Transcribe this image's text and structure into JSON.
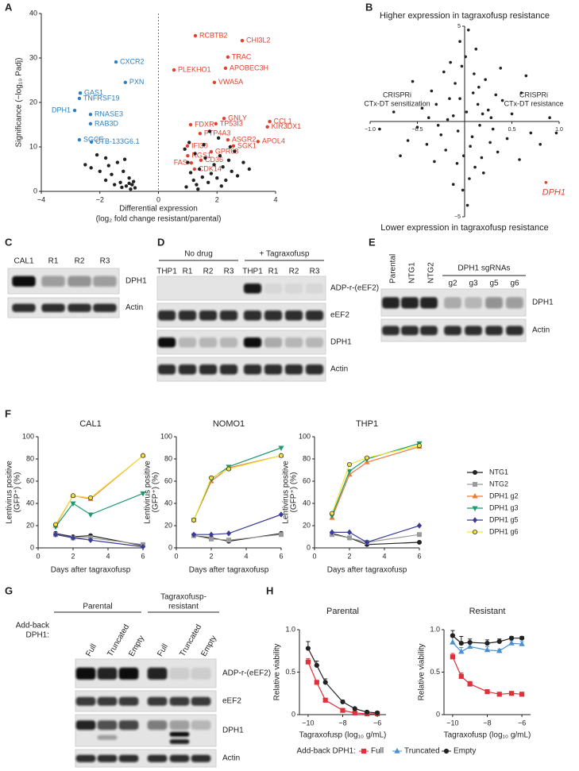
{
  "panel_labels": [
    "A",
    "B",
    "C",
    "D",
    "E",
    "F",
    "G",
    "H"
  ],
  "chart_data": [
    {
      "type": "volcano",
      "xlabel": [
        "Differential expression",
        "(log₂ fold change resistant/parental)"
      ],
      "ylabel": "Significance (−log₁₀ Padj)",
      "xlim": [
        -4,
        4
      ],
      "xticks": [
        {
          "value": -4,
          "label": "−4"
        },
        {
          "value": -2,
          "label": "−2"
        },
        0,
        2,
        4
      ],
      "ylim": [
        0,
        40
      ],
      "yticks": [
        0,
        10,
        20,
        30,
        40
      ],
      "series": [
        {
          "color": "#2e7fc0",
          "x": [
            -1.45,
            -1.13,
            -2.67,
            -2.7,
            -2.86,
            -2.32,
            -2.32,
            -2.7,
            -2.29
          ],
          "values": [
            29.1,
            24.5,
            22.1,
            20.9,
            18.2,
            17.3,
            15.2,
            11.6,
            11.1
          ],
          "point_labels": [
            "CXCR2",
            "PXN",
            "GAS1",
            "TNFRSF19",
            "DPH1",
            "RNASE3",
            "RAB3D",
            "SGCE",
            "CTB-133G6.1"
          ]
        },
        {
          "color": "#e0412c",
          "x": [
            1.26,
            2.86,
            2.37,
            2.29,
            0.53,
            1.91,
            3.8,
            3.72,
            2.24,
            1.1,
            1.96,
            1.42,
            2.37,
            2.56,
            0.99,
            1.8,
            1.0,
            1.45,
            1.12,
            1.23,
            3.4
          ],
          "values": [
            35.0,
            33.9,
            30.2,
            27.7,
            27.3,
            24.5,
            15.7,
            14.5,
            16.4,
            15.0,
            15.2,
            13.0,
            11.6,
            10.2,
            10.2,
            8.9,
            8.0,
            7.0,
            6.4,
            5.0,
            11.2
          ],
          "point_labels": [
            "RCBTB2",
            "CHI3L2",
            "TRAC",
            "APOBEC3H",
            "PLEKHO1",
            "VWA5A",
            "CCL1",
            "KIR3DX1",
            "GNLY",
            "FDXR",
            "TP53I3",
            "PTP4A3",
            "ASGR2",
            "SGK1",
            "IFI30",
            "GPR68",
            "RGS1",
            "CD36",
            "FAS",
            "CDK14",
            "APOL4"
          ]
        },
        {
          "color": "#222222",
          "x": [
            -2.5,
            -2.3,
            -2.0,
            -1.8,
            -1.6,
            -1.5,
            -1.3,
            -1.2,
            -1.1,
            -1.0,
            -0.9,
            -0.8,
            -1.4,
            -1.8,
            -2.1,
            -1.0,
            -0.85,
            -1.25,
            -1.7,
            -0.95,
            -1.15,
            0.9,
            1.0,
            1.1,
            1.2,
            1.3,
            1.4,
            1.5,
            1.6,
            1.7,
            1.8,
            1.9,
            2.0,
            2.1,
            2.2,
            2.3,
            2.4,
            2.5,
            2.6,
            2.7,
            2.9,
            3.1,
            0.95,
            1.05,
            1.25,
            1.55,
            2.05,
            2.45,
            1.35,
            1.75,
            2.15
          ],
          "values": [
            6,
            5.3,
            4.5,
            2.5,
            3.8,
            1.5,
            2.0,
            4.5,
            1.2,
            3.0,
            1.5,
            0.8,
            6.5,
            7.5,
            8.2,
            1.8,
            2.2,
            0.9,
            5.8,
            0.5,
            7.2,
            9.5,
            6.5,
            4.2,
            2.5,
            1.5,
            5.0,
            3.2,
            7.5,
            2.0,
            4.0,
            6.0,
            3.0,
            8.0,
            5.5,
            2.5,
            7.0,
            4.5,
            9.0,
            3.5,
            6.5,
            5.0,
            1.0,
            11.0,
            8.5,
            10.5,
            12.0,
            10.0,
            0.5,
            13.5,
            1.2
          ]
        }
      ]
    },
    {
      "type": "scatter",
      "top_label": "Higher expression in tagraxofusp resistance",
      "bottom_label": "Lower expression in tagraxofusp resistance",
      "left_label": [
        "CRISPRi",
        "CTx-DT sensitization"
      ],
      "right_label": [
        "CRISPRi",
        "CTx-DT resistance"
      ],
      "xlim": [
        -1,
        1
      ],
      "xticks": [
        {
          "value": -1,
          "label": "−1.0"
        },
        {
          "value": -0.5,
          "label": "−0.5"
        },
        0.5,
        {
          "value": 1,
          "label": "1.0"
        }
      ],
      "ylim": [
        -5,
        5
      ],
      "yticks": [
        5,
        {
          "value": -5,
          "label": "−5"
        }
      ],
      "series": [
        {
          "color": "#222222",
          "x": [
            0.02,
            -0.05,
            0.08,
            -0.12,
            0.15,
            -0.2,
            0.1,
            -0.08,
            0.25,
            -0.3,
            0.3,
            -0.15,
            0.05,
            0.18,
            -0.25,
            0.4,
            -0.4,
            0.12,
            -0.02,
            0.22,
            -0.35,
            0.35,
            -0.1,
            0.06,
            -0.18,
            0.28,
            -0.05,
            0.03,
            0.5,
            -0.5,
            0.45,
            -0.45,
            0.6,
            -0.6,
            0.14,
            -0.22,
            0.2,
            -0.07,
            0.09,
            -0.32,
            0.38,
            -0.12,
            0.7,
            -0.75,
            0.9,
            -0.9,
            0.58,
            -0.55,
            0.01,
            0.16,
            -0.28,
            0.33,
            -0.01,
            0.11,
            -0.16,
            0.27,
            -0.38,
            0.65,
            -0.68,
            0.8,
            0.97,
            0.04,
            -0.03,
            0.19
          ],
          "values": [
            0.5,
            1.2,
            -0.8,
            0.3,
            1.8,
            -1.5,
            2.5,
            -2.2,
            0.6,
            0.9,
            -0.4,
            3.1,
            -3.0,
            -1.9,
            -0.7,
            1.1,
            -1.2,
            3.8,
            -3.6,
            2.2,
            1.6,
            -1.6,
            2.0,
            -1.3,
            0.1,
            0.2,
            4.2,
            -4.4,
            0.4,
            -0.3,
            -0.9,
            0.7,
            1.5,
            -1.0,
            0.9,
            2.6,
            -2.7,
            -0.5,
            1.5,
            -2.1,
            2.8,
            -3.3,
            -0.6,
            0.5,
            0.2,
            -0.4,
            -2.0,
            2.1,
            3.4,
            -0.2,
            -0.2,
            1.4,
            -1.8,
            -2.4,
            1.2,
            -1.1,
            0.2,
            2.4,
            -1.8,
            -1.2,
            -0.6,
            4.8,
            2.9,
            0.4
          ]
        },
        {
          "color": "#e0412c",
          "x": [
            0.86
          ],
          "values": [
            -3.2
          ],
          "point_labels": [
            "DPH1"
          ]
        }
      ]
    },
    {
      "type": "line",
      "titles": [
        "CAL1",
        "NOMO1",
        "THP1"
      ],
      "xlabel": "Days after tagraxofusp",
      "ylabel": [
        "Lentivirus positive",
        "(GFP⁺) (%)"
      ],
      "x": [
        1,
        2,
        3,
        6
      ],
      "xlim": [
        0,
        6
      ],
      "xticks": [
        0,
        2,
        4,
        6
      ],
      "ylim": [
        0,
        100
      ],
      "yticks": [
        0,
        20,
        40,
        60,
        80,
        100
      ],
      "series": [
        {
          "name": "NTG1",
          "color": "#222222",
          "marker": "circle",
          "values": [
            [
              13,
              10,
              11,
              2
            ],
            [
              11,
              9,
              6,
              13
            ],
            [
              13,
              9,
              3,
              5
            ]
          ]
        },
        {
          "name": "NTG2",
          "color": "#9a9a9a",
          "marker": "square",
          "values": [
            [
              12,
              9,
              9,
              3
            ],
            [
              11,
              8,
              7,
              12
            ],
            [
              12,
              9,
              5,
              12
            ]
          ]
        },
        {
          "name": "DPH1 g2",
          "color": "#ee7b3a",
          "marker": "triangle",
          "values": [
            [
              20,
              47,
              44,
              83
            ],
            [
              25,
              60,
              72,
              83
            ],
            [
              27,
              66,
              77,
              91
            ]
          ]
        },
        {
          "name": "DPH1 g3",
          "color": "#1e9a6e",
          "marker": "triangle-down",
          "values": [
            [
              19,
              40,
              30,
              49
            ],
            [
              25,
              62,
              73,
              90
            ],
            [
              29,
              69,
              80,
              94
            ]
          ]
        },
        {
          "name": "DPH1 g5",
          "color": "#3a3a9a",
          "marker": "diamond",
          "values": [
            [
              12,
              9,
              7,
              1
            ],
            [
              12,
              12,
              13,
              30
            ],
            [
              14,
              14,
              5,
              20
            ]
          ]
        },
        {
          "name": "DPH1 g6",
          "color": "#f2e33a",
          "edgecolor": "#333333",
          "marker": "circle",
          "values": [
            [
              21,
              47,
              45,
              83
            ],
            [
              25,
              63,
              71,
              83
            ],
            [
              31,
              75,
              81,
              92
            ]
          ]
        }
      ]
    },
    {
      "type": "dose-response",
      "titles": [
        "Parental",
        "Resistant"
      ],
      "xlabel": "Tagraxofusp (log₁₀ g/mL)",
      "ylabel": "Relative viability",
      "legend_title": "Add-back DPH1:",
      "x": [
        -10,
        -9.5,
        -9,
        -8,
        -7.3,
        -6.6,
        -6
      ],
      "xlim": [
        -10.5,
        -5.5
      ],
      "xticks": [
        {
          "value": -10,
          "label": "−10"
        },
        {
          "value": -8,
          "label": "−8"
        },
        {
          "value": -6,
          "label": "−6"
        }
      ],
      "ylim": [
        0,
        1
      ],
      "yticks": [
        0,
        0.5,
        {
          "value": 1,
          "label": "1.0"
        }
      ],
      "series": [
        {
          "name": "Full",
          "color": "#e0303a",
          "marker": "square",
          "values": [
            [
              0.62,
              0.38,
              0.17,
              0.05,
              0.02,
              0.01,
              0.01
            ],
            [
              0.68,
              0.45,
              0.36,
              0.27,
              0.24,
              0.25,
              0.24
            ]
          ],
          "errors": [
            [
              0.04,
              0.02,
              0.01,
              0.01,
              0.01,
              0.01,
              0.01
            ],
            [
              0.04,
              0.04,
              0.03,
              0.02,
              0.01,
              0.01,
              0.01
            ]
          ]
        },
        {
          "name": "Truncated",
          "color": "#4a90d0",
          "marker": "triangle",
          "values": [
            [
              null,
              null,
              null,
              null,
              null,
              null,
              null
            ],
            [
              0.85,
              0.74,
              0.8,
              0.76,
              0.75,
              0.84,
              0.83
            ]
          ],
          "errors": [
            [
              null,
              null,
              null,
              null,
              null,
              null,
              null
            ],
            [
              0.06,
              0.05,
              0.04,
              0.04,
              0.02,
              0.03,
              0.03
            ]
          ]
        },
        {
          "name": "Empty",
          "color": "#222222",
          "marker": "circle",
          "values": [
            [
              0.78,
              0.58,
              0.38,
              0.15,
              0.07,
              0.03,
              0.02
            ],
            [
              0.93,
              0.84,
              0.85,
              0.84,
              0.86,
              0.9,
              0.9
            ]
          ],
          "errors": [
            [
              0.08,
              0.05,
              0.04,
              0.02,
              0.01,
              0.01,
              0.01
            ],
            [
              0.06,
              0.08,
              0.04,
              0.04,
              0.03,
              0.02,
              0.02
            ]
          ]
        }
      ]
    }
  ],
  "blots": [
    {
      "lanes": [
        "CAL1",
        "R1",
        "R2",
        "R3"
      ],
      "rows": [
        "DPH1",
        "Actin"
      ]
    },
    {
      "groups": [
        [
          "No drug"
        ],
        [
          "+ Tagraxofusp"
        ]
      ],
      "lanes": [
        "THP1",
        "R1",
        "R2",
        "R3",
        "THP1",
        "R1",
        "R2",
        "R3"
      ],
      "rows": [
        "ADP-r-(eEF2)",
        "eEF2",
        "DPH1",
        "Actin"
      ]
    },
    {
      "groups": [
        [
          "DPH1 sgRNAs"
        ]
      ],
      "lanes": [
        "Parental",
        "NTG1",
        "NTG2",
        "g2",
        "g3",
        "g5",
        "g6"
      ],
      "rows": [
        "DPH1",
        "Actin"
      ]
    },
    {
      "row_title": [
        "Add-back",
        "DPH1:"
      ],
      "groups": [
        [
          "Parental"
        ],
        [
          "Tagraxofusp-",
          "resistant"
        ]
      ],
      "lanes": [
        "Full",
        "Truncated",
        "Empty",
        "Full",
        "Truncated",
        "Empty"
      ],
      "rows": [
        "ADP-r-(eEF2)",
        "eEF2",
        "DPH1",
        "Actin"
      ]
    }
  ]
}
